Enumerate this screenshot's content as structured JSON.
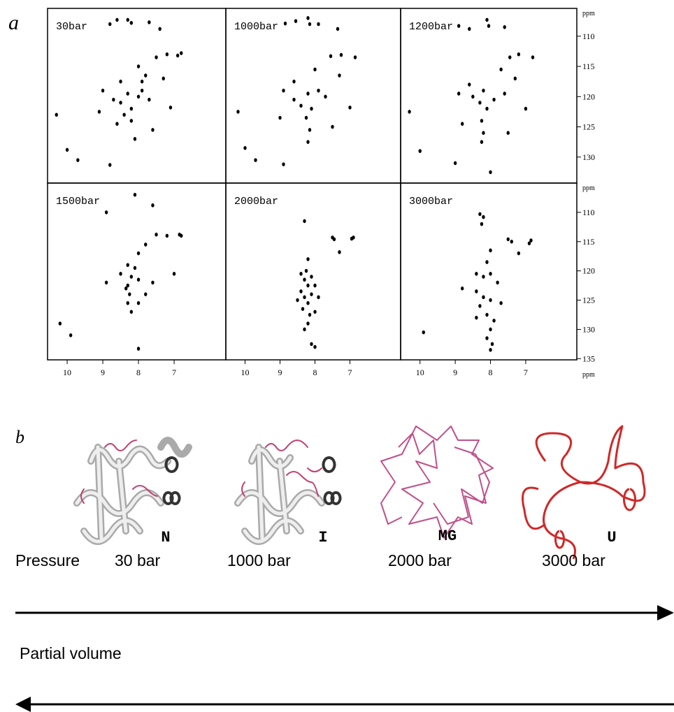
{
  "panel_labels": [
    "a",
    "b"
  ],
  "chart_data": [
    {
      "type": "scatter",
      "title": "30bar",
      "color": "#000000",
      "xlim": [
        10.55,
        5.55
      ],
      "ylim": [
        105.4,
        134.3
      ],
      "x": [
        8.8,
        8.6,
        8.3,
        8.2,
        7.7,
        7.4,
        7.5,
        7.2,
        6.8,
        6.9,
        8.0,
        7.8,
        8.5,
        9.0,
        8.7,
        8.5,
        8.3,
        8.2,
        8.0,
        7.9,
        7.7,
        8.4,
        8.2,
        8.1,
        7.6,
        9.1,
        10.3,
        10.0,
        9.7,
        8.8,
        7.1,
        7.3,
        8.6,
        7.9
      ],
      "y": [
        108.0,
        107.3,
        107.3,
        107.8,
        107.7,
        108.8,
        113.5,
        113.0,
        112.8,
        113.2,
        115.0,
        116.5,
        117.5,
        119.0,
        120.5,
        121.0,
        119.5,
        122.0,
        120.0,
        119.0,
        120.5,
        123.0,
        124.0,
        127.0,
        125.5,
        122.5,
        123.0,
        128.8,
        130.5,
        131.3,
        121.8,
        117.0,
        124.5,
        117.5
      ]
    },
    {
      "type": "scatter",
      "title": "1000bar",
      "color": "#000000",
      "xlim": [
        10.55,
        5.55
      ],
      "ylim": [
        105.4,
        134.3
      ],
      "x": [
        8.85,
        8.55,
        8.2,
        8.15,
        7.9,
        7.35,
        7.55,
        7.25,
        6.85,
        8.0,
        8.6,
        8.9,
        8.6,
        8.4,
        8.2,
        8.1,
        7.9,
        7.7,
        8.25,
        8.15,
        8.2,
        7.5,
        9.0,
        10.2,
        10.0,
        9.7,
        8.9,
        7.0,
        7.3
      ],
      "y": [
        107.9,
        107.5,
        107.0,
        108.0,
        108.0,
        108.8,
        113.3,
        113.1,
        113.5,
        115.5,
        117.5,
        119.0,
        120.5,
        121.5,
        119.5,
        122.0,
        119.0,
        120.0,
        123.5,
        125.5,
        127.5,
        125.0,
        123.5,
        122.5,
        128.5,
        130.5,
        131.2,
        121.8,
        116.5
      ]
    },
    {
      "type": "scatter",
      "title": "1200bar",
      "color": "#000000",
      "xlim": [
        10.55,
        5.55
      ],
      "ylim": [
        105.4,
        134.3
      ],
      "ylabel": "ppm",
      "yticks": [
        110,
        115,
        120,
        125,
        130
      ],
      "x": [
        8.9,
        8.6,
        8.1,
        8.05,
        7.6,
        7.45,
        7.2,
        6.8,
        7.7,
        8.6,
        8.9,
        8.5,
        8.3,
        8.2,
        8.1,
        7.9,
        7.6,
        8.25,
        8.2,
        8.25,
        7.5,
        8.8,
        10.3,
        10.0,
        9.0,
        7.0,
        7.3,
        8.0
      ],
      "y": [
        108.3,
        108.8,
        107.3,
        108.3,
        108.5,
        113.5,
        113.0,
        113.5,
        115.5,
        118.0,
        119.5,
        120.0,
        121.0,
        119.0,
        122.0,
        120.5,
        119.5,
        124.0,
        126.0,
        127.5,
        126.0,
        124.5,
        122.5,
        129.0,
        131.0,
        122.0,
        117.0,
        132.5
      ]
    },
    {
      "type": "scatter",
      "title": "1500bar",
      "color": "#000000",
      "xlim": [
        10.55,
        5.55
      ],
      "ylim": [
        105,
        135.2
      ],
      "xticks": [
        10,
        9,
        8,
        7
      ],
      "x": [
        8.9,
        8.1,
        7.6,
        7.5,
        7.2,
        6.85,
        6.8,
        7.8,
        8.0,
        8.3,
        8.5,
        8.2,
        8.0,
        8.3,
        8.25,
        8.3,
        8.2,
        8.0,
        7.8,
        7.6,
        7.0,
        8.9,
        10.2,
        9.9,
        8.0,
        8.35,
        8.1
      ],
      "y": [
        110.0,
        107.0,
        108.8,
        113.8,
        114.0,
        113.8,
        114.0,
        115.5,
        117.0,
        119.0,
        120.5,
        121.0,
        121.5,
        122.5,
        124.0,
        125.5,
        127.0,
        125.5,
        124.0,
        122.0,
        120.5,
        122.0,
        129.0,
        131.0,
        133.3,
        123.0,
        119.5
      ]
    },
    {
      "type": "scatter",
      "title": "2000bar",
      "color": "#000000",
      "xlim": [
        10.55,
        5.55
      ],
      "ylim": [
        105,
        135.2
      ],
      "xticks": [
        10,
        9,
        8,
        7
      ],
      "x": [
        8.3,
        7.5,
        7.45,
        6.9,
        6.95,
        7.3,
        8.2,
        8.4,
        8.3,
        8.1,
        8.2,
        8.4,
        8.3,
        8.1,
        8.2,
        8.35,
        8.15,
        8.0,
        8.2,
        8.3,
        8.1,
        8.0,
        8.5,
        8.0,
        7.9,
        8.25
      ],
      "y": [
        111.5,
        114.3,
        114.6,
        114.3,
        114.5,
        116.8,
        118.0,
        120.5,
        121.5,
        121.0,
        122.5,
        123.5,
        124.5,
        124.0,
        125.5,
        126.5,
        127.5,
        127.0,
        129.0,
        130.0,
        132.5,
        133.0,
        125.0,
        122.5,
        124.5,
        120.0
      ]
    },
    {
      "type": "scatter",
      "title": "3000bar",
      "color": "#000000",
      "xlim": [
        10.55,
        5.55
      ],
      "ylim": [
        105,
        135.2
      ],
      "xticks": [
        10,
        9,
        8,
        7
      ],
      "xlabel": "ppm",
      "ylabel": "ppm",
      "yticks": [
        110,
        115,
        120,
        125,
        130,
        135
      ],
      "x": [
        8.3,
        8.2,
        8.25,
        7.5,
        7.4,
        6.85,
        6.9,
        7.2,
        8.0,
        8.1,
        8.4,
        8.2,
        8.0,
        7.8,
        8.4,
        8.2,
        8.0,
        8.3,
        8.1,
        8.4,
        7.9,
        8.0,
        8.1,
        7.95,
        8.0,
        9.9,
        8.8,
        7.7
      ],
      "y": [
        110.3,
        110.8,
        112.0,
        114.6,
        115.0,
        114.8,
        115.3,
        117.0,
        116.5,
        118.5,
        120.5,
        121.0,
        120.5,
        122.0,
        123.5,
        124.5,
        125.0,
        126.0,
        127.5,
        128.0,
        128.5,
        130.0,
        131.5,
        132.5,
        133.5,
        130.5,
        123.0,
        125.5
      ]
    }
  ],
  "structures": [
    "N",
    "I",
    "MG",
    "U"
  ],
  "pressure_axis": {
    "label": "Pressure",
    "ticks": [
      "30 bar",
      "1000 bar",
      "2000 bar",
      "3000 bar"
    ]
  },
  "volume_axis": {
    "label": "Partial volume"
  }
}
